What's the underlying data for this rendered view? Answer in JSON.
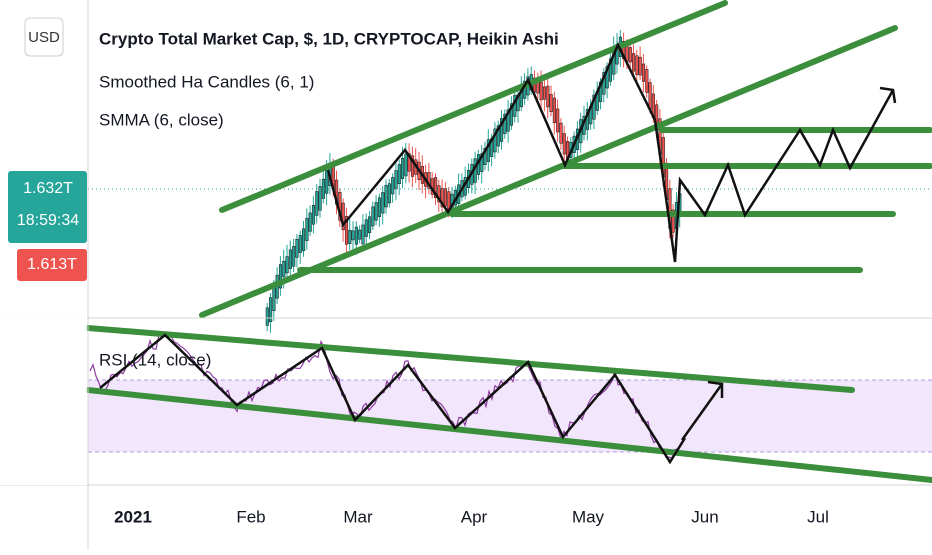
{
  "header": {
    "currency": "USD",
    "title": "Crypto Total Market Cap, $, 1D, CRYPTOCAP, Heikin Ashi",
    "indicator_1": "Smoothed Ha Candles (6, 1)",
    "indicator_2": "SMMA (6, close)"
  },
  "price_labels": {
    "last_price": "1.632T",
    "countdown": "18:59:34",
    "smma": "1.613T"
  },
  "rsi": {
    "title": "RSI (14, close)"
  },
  "time_axis": [
    "2021",
    "Feb",
    "Mar",
    "Apr",
    "May",
    "Jun",
    "Jul"
  ]
}
